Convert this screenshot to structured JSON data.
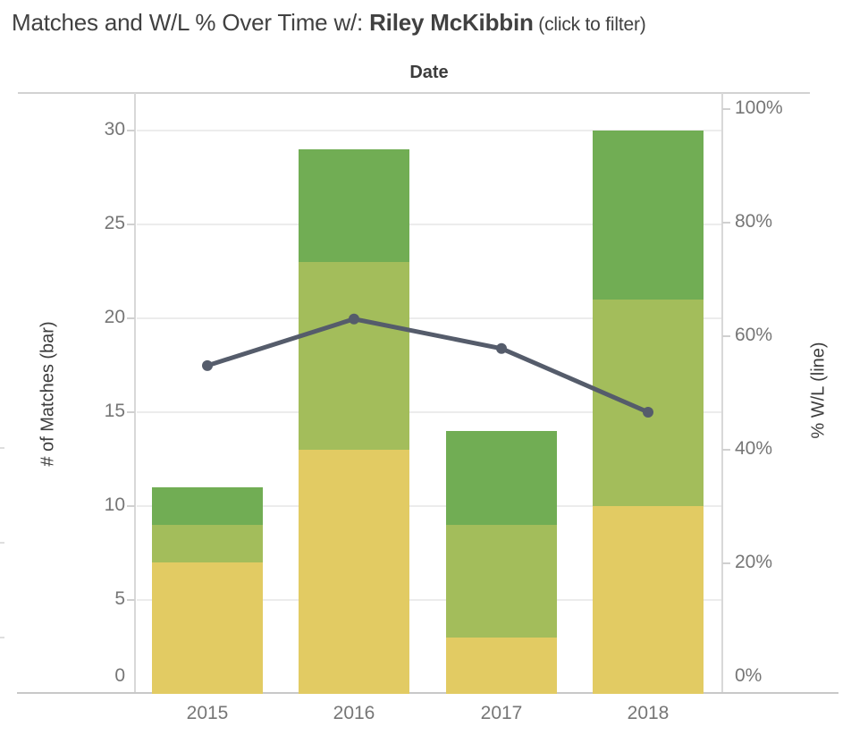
{
  "header": {
    "title_prefix": "Matches and W/L % Over Time w/: ",
    "player_name": "Riley McKibbin",
    "title_suffix": " (click to filter)"
  },
  "chart_data": {
    "type": "bar",
    "subtype": "stacked-bars-with-dual-axis-line",
    "title": "Matches and W/L % Over Time w/: Riley McKibbin (click to filter)",
    "column_header": "Date",
    "categories": [
      "2015",
      "2016",
      "2017",
      "2018"
    ],
    "series": [
      {
        "name": "matches-bottom-segment",
        "type": "bar",
        "color": "#e2cb63",
        "values": [
          7,
          13,
          3,
          10
        ]
      },
      {
        "name": "matches-middle-segment",
        "type": "bar",
        "color": "#a3bd5b",
        "values": [
          2,
          10,
          6,
          11
        ]
      },
      {
        "name": "matches-top-segment",
        "type": "bar",
        "color": "#71ad54",
        "values": [
          2,
          6,
          5,
          9
        ]
      },
      {
        "name": "win-loss-pct-line",
        "type": "line",
        "axis": "right",
        "color": "#555c6b",
        "values_pct": [
          54.8,
          63,
          57.8,
          46.6
        ]
      }
    ],
    "bar_totals": [
      11,
      29,
      14,
      30
    ],
    "left_axis": {
      "title": "# of Matches (bar)",
      "tick_labels": [
        "0",
        "5",
        "10",
        "15",
        "20",
        "25",
        "30"
      ],
      "tick_step": 5,
      "range": [
        0,
        32
      ]
    },
    "right_axis": {
      "title": "% W/L (line)",
      "tick_labels": [
        "0%",
        "20%",
        "40%",
        "60%",
        "80%",
        "100%"
      ],
      "tick_step_pct": 20
    },
    "grid": {
      "horizontal": true,
      "color": "#ececec"
    }
  },
  "colors": {
    "background": "#ffffff",
    "bar_yellow": "#e2cb63",
    "bar_light_green": "#a3bd5b",
    "bar_dark_green": "#71ad54",
    "line": "#555c6b",
    "gridline": "#ececec",
    "axis_border": "#d2d2d2",
    "tick_text": "#767676",
    "title_text": "#414141"
  }
}
